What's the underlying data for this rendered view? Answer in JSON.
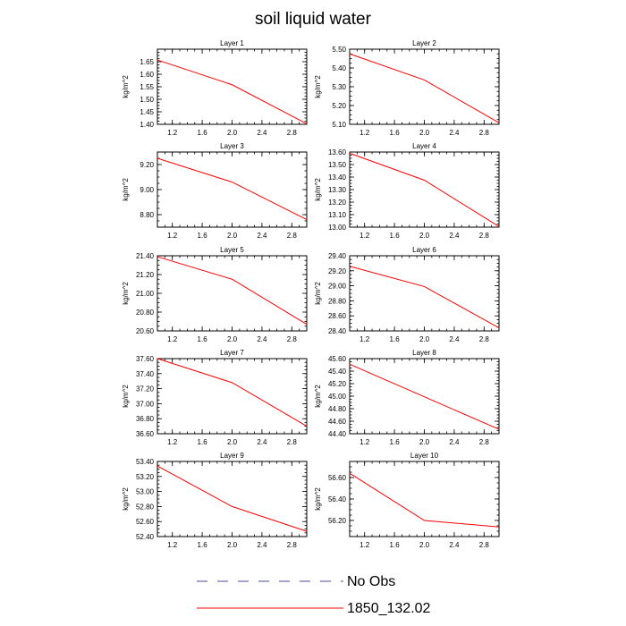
{
  "title": "soil liquid water",
  "colors": {
    "model": "#ff0000",
    "obs": "#4a4a9a",
    "axis": "#000000"
  },
  "legend": [
    {
      "label": "No Obs",
      "style": "dashed",
      "color": "#4a4a9a"
    },
    {
      "label": "1850_132.02",
      "style": "solid",
      "color": "#ff0000"
    }
  ],
  "chart_data": [
    {
      "type": "line",
      "title": "Layer 1",
      "ylabel": "kg/m^2",
      "x": [
        1.0,
        2.0,
        3.0
      ],
      "xlim": [
        1.0,
        3.0
      ],
      "xticks": [
        "1.2",
        "1.6",
        "2.0",
        "2.4",
        "2.8"
      ],
      "ylim": [
        1.4,
        1.7
      ],
      "yticks": [
        "1.40",
        "1.45",
        "1.50",
        "1.55",
        "1.60",
        "1.65"
      ],
      "series": [
        {
          "name": "1850_132.02",
          "values": [
            1.657,
            1.558,
            1.402
          ]
        }
      ]
    },
    {
      "type": "line",
      "title": "Layer 2",
      "ylabel": "kg/m^2",
      "x": [
        1.0,
        2.0,
        3.0
      ],
      "xlim": [
        1.0,
        3.0
      ],
      "xticks": [
        "1.2",
        "1.6",
        "2.0",
        "2.4",
        "2.8"
      ],
      "ylim": [
        5.1,
        5.5
      ],
      "yticks": [
        "5.10",
        "5.20",
        "5.30",
        "5.40",
        "5.50"
      ],
      "series": [
        {
          "name": "1850_132.02",
          "values": [
            5.475,
            5.336,
            5.108
          ]
        }
      ]
    },
    {
      "type": "line",
      "title": "Layer 3",
      "ylabel": "kg/m^2",
      "x": [
        1.0,
        2.0,
        3.0
      ],
      "xlim": [
        1.0,
        3.0
      ],
      "xticks": [
        "1.2",
        "1.6",
        "2.0",
        "2.4",
        "2.8"
      ],
      "ylim": [
        8.7,
        9.3
      ],
      "yticks": [
        "8.80",
        "9.00",
        "9.20"
      ],
      "series": [
        {
          "name": "1850_132.02",
          "values": [
            9.25,
            9.06,
            8.76
          ]
        }
      ]
    },
    {
      "type": "line",
      "title": "Layer 4",
      "ylabel": "kg/m^2",
      "x": [
        1.0,
        2.0,
        3.0
      ],
      "xlim": [
        1.0,
        3.0
      ],
      "xticks": [
        "1.2",
        "1.6",
        "2.0",
        "2.4",
        "2.8"
      ],
      "ylim": [
        13.0,
        13.6
      ],
      "yticks": [
        "13.00",
        "13.10",
        "13.20",
        "13.30",
        "13.40",
        "13.50",
        "13.60"
      ],
      "series": [
        {
          "name": "1850_132.02",
          "values": [
            13.59,
            13.375,
            13.005
          ]
        }
      ]
    },
    {
      "type": "line",
      "title": "Layer 5",
      "ylabel": "kg/m^2",
      "x": [
        1.0,
        2.0,
        3.0
      ],
      "xlim": [
        1.0,
        3.0
      ],
      "xticks": [
        "1.2",
        "1.6",
        "2.0",
        "2.4",
        "2.8"
      ],
      "ylim": [
        20.6,
        21.4
      ],
      "yticks": [
        "20.60",
        "20.80",
        "21.00",
        "21.20",
        "21.40"
      ],
      "series": [
        {
          "name": "1850_132.02",
          "values": [
            21.39,
            21.15,
            20.67
          ]
        }
      ]
    },
    {
      "type": "line",
      "title": "Layer 6",
      "ylabel": "kg/m^2",
      "x": [
        1.0,
        2.0,
        3.0
      ],
      "xlim": [
        1.0,
        3.0
      ],
      "xticks": [
        "1.2",
        "1.6",
        "2.0",
        "2.4",
        "2.8"
      ],
      "ylim": [
        28.4,
        29.4
      ],
      "yticks": [
        "28.40",
        "28.60",
        "28.80",
        "29.00",
        "29.20",
        "29.40"
      ],
      "series": [
        {
          "name": "1850_132.02",
          "values": [
            29.26,
            28.99,
            28.44
          ]
        }
      ]
    },
    {
      "type": "line",
      "title": "Layer 7",
      "ylabel": "kg/m^2",
      "x": [
        1.0,
        2.0,
        3.0
      ],
      "xlim": [
        1.0,
        3.0
      ],
      "xticks": [
        "1.2",
        "1.6",
        "2.0",
        "2.4",
        "2.8"
      ],
      "ylim": [
        36.6,
        37.6
      ],
      "yticks": [
        "36.60",
        "36.80",
        "37.00",
        "37.20",
        "37.40",
        "37.60"
      ],
      "series": [
        {
          "name": "1850_132.02",
          "values": [
            37.6,
            37.28,
            36.7
          ]
        }
      ]
    },
    {
      "type": "line",
      "title": "Layer 8",
      "ylabel": "kg/m^2",
      "x": [
        1.0,
        2.0,
        3.0
      ],
      "xlim": [
        1.0,
        3.0
      ],
      "xticks": [
        "1.2",
        "1.6",
        "2.0",
        "2.4",
        "2.8"
      ],
      "ylim": [
        44.4,
        45.6
      ],
      "yticks": [
        "44.40",
        "44.60",
        "44.80",
        "45.00",
        "45.20",
        "45.40",
        "45.60"
      ],
      "series": [
        {
          "name": "1850_132.02",
          "values": [
            45.51,
            44.99,
            44.47
          ]
        }
      ]
    },
    {
      "type": "line",
      "title": "Layer 9",
      "ylabel": "kg/m^2",
      "x": [
        1.0,
        2.0,
        3.0
      ],
      "xlim": [
        1.0,
        3.0
      ],
      "xticks": [
        "1.2",
        "1.6",
        "2.0",
        "2.4",
        "2.8"
      ],
      "ylim": [
        52.4,
        53.4
      ],
      "yticks": [
        "52.40",
        "52.60",
        "52.80",
        "53.00",
        "53.20",
        "53.40"
      ],
      "series": [
        {
          "name": "1850_132.02",
          "values": [
            53.34,
            52.8,
            52.47
          ]
        }
      ]
    },
    {
      "type": "line",
      "title": "Layer 10",
      "ylabel": "kg/m^2",
      "x": [
        1.0,
        2.0,
        3.0
      ],
      "xlim": [
        1.0,
        3.0
      ],
      "xticks": [
        "1.2",
        "1.6",
        "2.0",
        "2.4",
        "2.8"
      ],
      "ylim": [
        56.05,
        56.75
      ],
      "yticks": [
        "56.20",
        "56.40",
        "56.60"
      ],
      "series": [
        {
          "name": "1850_132.02",
          "values": [
            56.64,
            56.2,
            56.14
          ]
        }
      ]
    }
  ]
}
